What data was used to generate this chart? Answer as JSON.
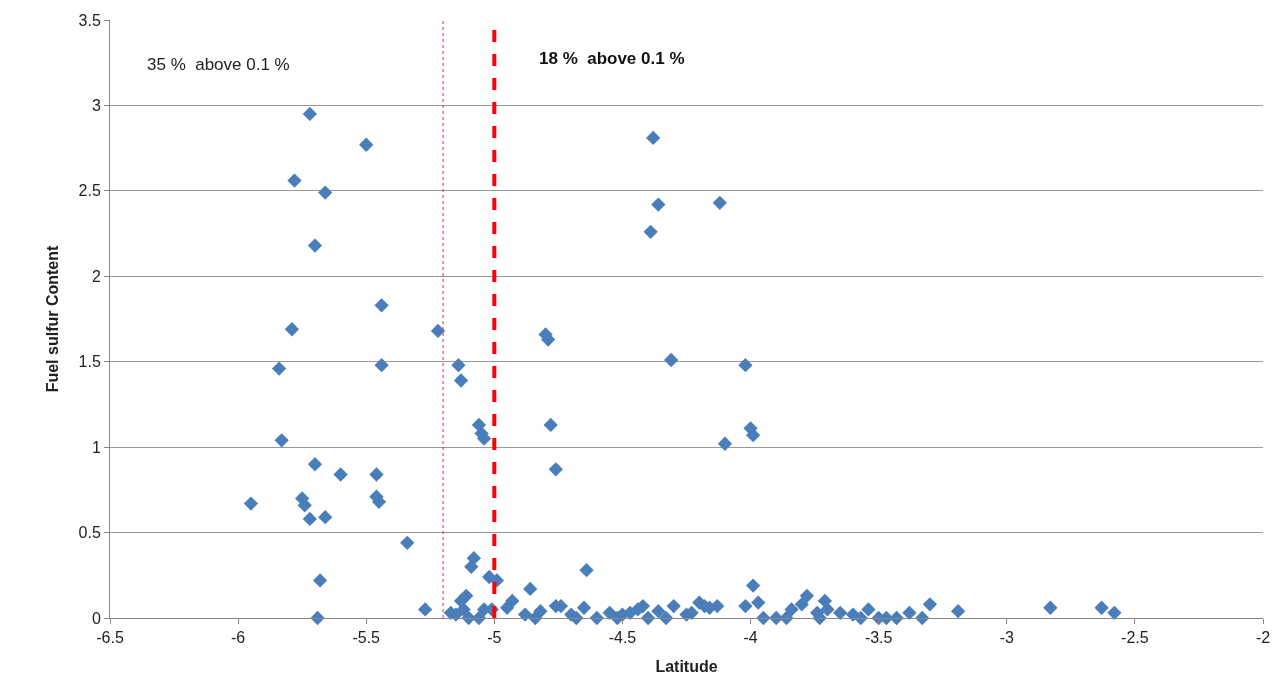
{
  "chart_data": {
    "type": "scatter",
    "xlabel": "Latitude",
    "ylabel": "Fuel sulfur Content",
    "annotations": [
      "35 %  above 0.1 %",
      "18 %  above 0.1 %"
    ],
    "xlim": [
      -6.5,
      -2
    ],
    "xticks": [
      -6.5,
      -6,
      -5.5,
      -5,
      -4.5,
      -4,
      -3.5,
      -3,
      -2.5,
      -2
    ],
    "ylim": [
      0,
      3.5
    ],
    "yticks": [
      0,
      0.5,
      1,
      1.5,
      2,
      2.5,
      3,
      3.5
    ],
    "grid": "y",
    "marker": "diamond",
    "ref_lines": [
      {
        "axis": "x",
        "value": -5.2,
        "label": null,
        "color": "#e03030",
        "line_style": "dotted"
      },
      {
        "axis": "x",
        "value": -5,
        "label": null,
        "color": "#ff0000",
        "line_style": "dashed"
      }
    ],
    "series": [
      {
        "color": "#4a7ebb",
        "x": [
          -5.72,
          -5.5,
          -5.78,
          -5.66,
          -5.7,
          -5.44,
          -5.79,
          -5.22,
          -5.84,
          -5.44,
          -5.14,
          -5.13,
          -5.83,
          -5.7,
          -5.6,
          -5.46,
          -5.46,
          -5.45,
          -5.75,
          -5.74,
          -5.72,
          -5.66,
          -5.95,
          -5.34,
          -5.68,
          -5.69,
          -5.27,
          -4.38,
          -4.36,
          -4.39,
          -4.12,
          -4.8,
          -4.79,
          -4.31,
          -4.02,
          -5.06,
          -5.05,
          -5.04,
          -4.78,
          -4.1,
          -4.0,
          -3.99,
          -4.76,
          -5.09,
          -5.08,
          -5.02,
          -4.99,
          -4.64,
          -4.86,
          -3.99,
          -3.78,
          -3.71,
          -4.2,
          -4.18,
          -5.13,
          -5.11,
          -5.15,
          -5.17,
          -5.12,
          -5.1,
          -5.06,
          -5.04,
          -5.01,
          -4.95,
          -4.93,
          -4.88,
          -4.84,
          -4.82,
          -4.76,
          -4.74,
          -4.7,
          -4.68,
          -4.65,
          -4.6,
          -4.55,
          -4.52,
          -4.5,
          -4.47,
          -4.44,
          -4.42,
          -4.4,
          -4.36,
          -4.33,
          -4.3,
          -4.25,
          -4.23,
          -4.16,
          -4.13,
          -4.02,
          -3.97,
          -3.95,
          -3.9,
          -3.86,
          -3.84,
          -3.8,
          -3.74,
          -3.73,
          -3.7,
          -3.65,
          -3.6,
          -3.57,
          -3.54,
          -3.5,
          -3.47,
          -3.43,
          -3.38,
          -3.33,
          -3.3,
          -3.19,
          -2.83,
          -2.63,
          -2.58
        ],
        "values": [
          2.95,
          2.77,
          2.56,
          2.49,
          2.18,
          1.83,
          1.69,
          1.68,
          1.46,
          1.48,
          1.48,
          1.39,
          1.04,
          0.9,
          0.84,
          0.84,
          0.71,
          0.68,
          0.7,
          0.66,
          0.58,
          0.59,
          0.67,
          0.44,
          0.22,
          0.0,
          0.05,
          2.81,
          2.42,
          2.26,
          2.43,
          1.66,
          1.63,
          1.51,
          1.48,
          1.13,
          1.08,
          1.05,
          1.13,
          1.02,
          1.11,
          1.07,
          0.87,
          0.3,
          0.35,
          0.24,
          0.22,
          0.28,
          0.17,
          0.19,
          0.13,
          0.1,
          0.09,
          0.07,
          0.1,
          0.13,
          0.02,
          0.03,
          0.05,
          0.0,
          0.0,
          0.05,
          0.05,
          0.06,
          0.1,
          0.02,
          0.0,
          0.04,
          0.07,
          0.07,
          0.02,
          0.0,
          0.06,
          0.0,
          0.03,
          0.0,
          0.02,
          0.03,
          0.05,
          0.07,
          0.0,
          0.04,
          0.0,
          0.07,
          0.02,
          0.03,
          0.06,
          0.07,
          0.07,
          0.09,
          0.0,
          0.0,
          0.0,
          0.05,
          0.08,
          0.03,
          0.0,
          0.05,
          0.03,
          0.02,
          0.0,
          0.05,
          0.0,
          0.0,
          0.0,
          0.03,
          0.0,
          0.08,
          0.04,
          0.06,
          0.06,
          0.03
        ]
      }
    ]
  }
}
